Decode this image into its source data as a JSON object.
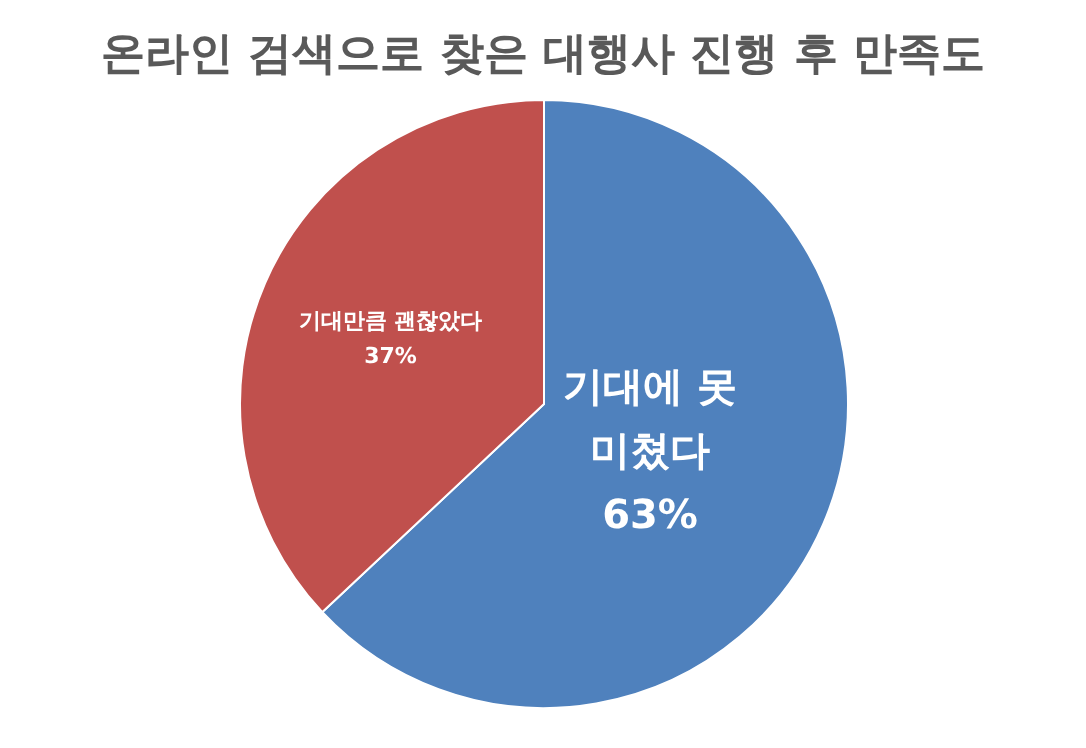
{
  "chart_data": {
    "type": "pie",
    "title": "온라인 검색으로 찾은 대행사 진행 후 만족도",
    "categories": [
      "기대에 못 미쳤다",
      "기대만큼 괜찮았다"
    ],
    "values": [
      63,
      37
    ],
    "colors": [
      "#4f81bd",
      "#c0504d"
    ],
    "value_labels": [
      "63%",
      "37%"
    ]
  }
}
